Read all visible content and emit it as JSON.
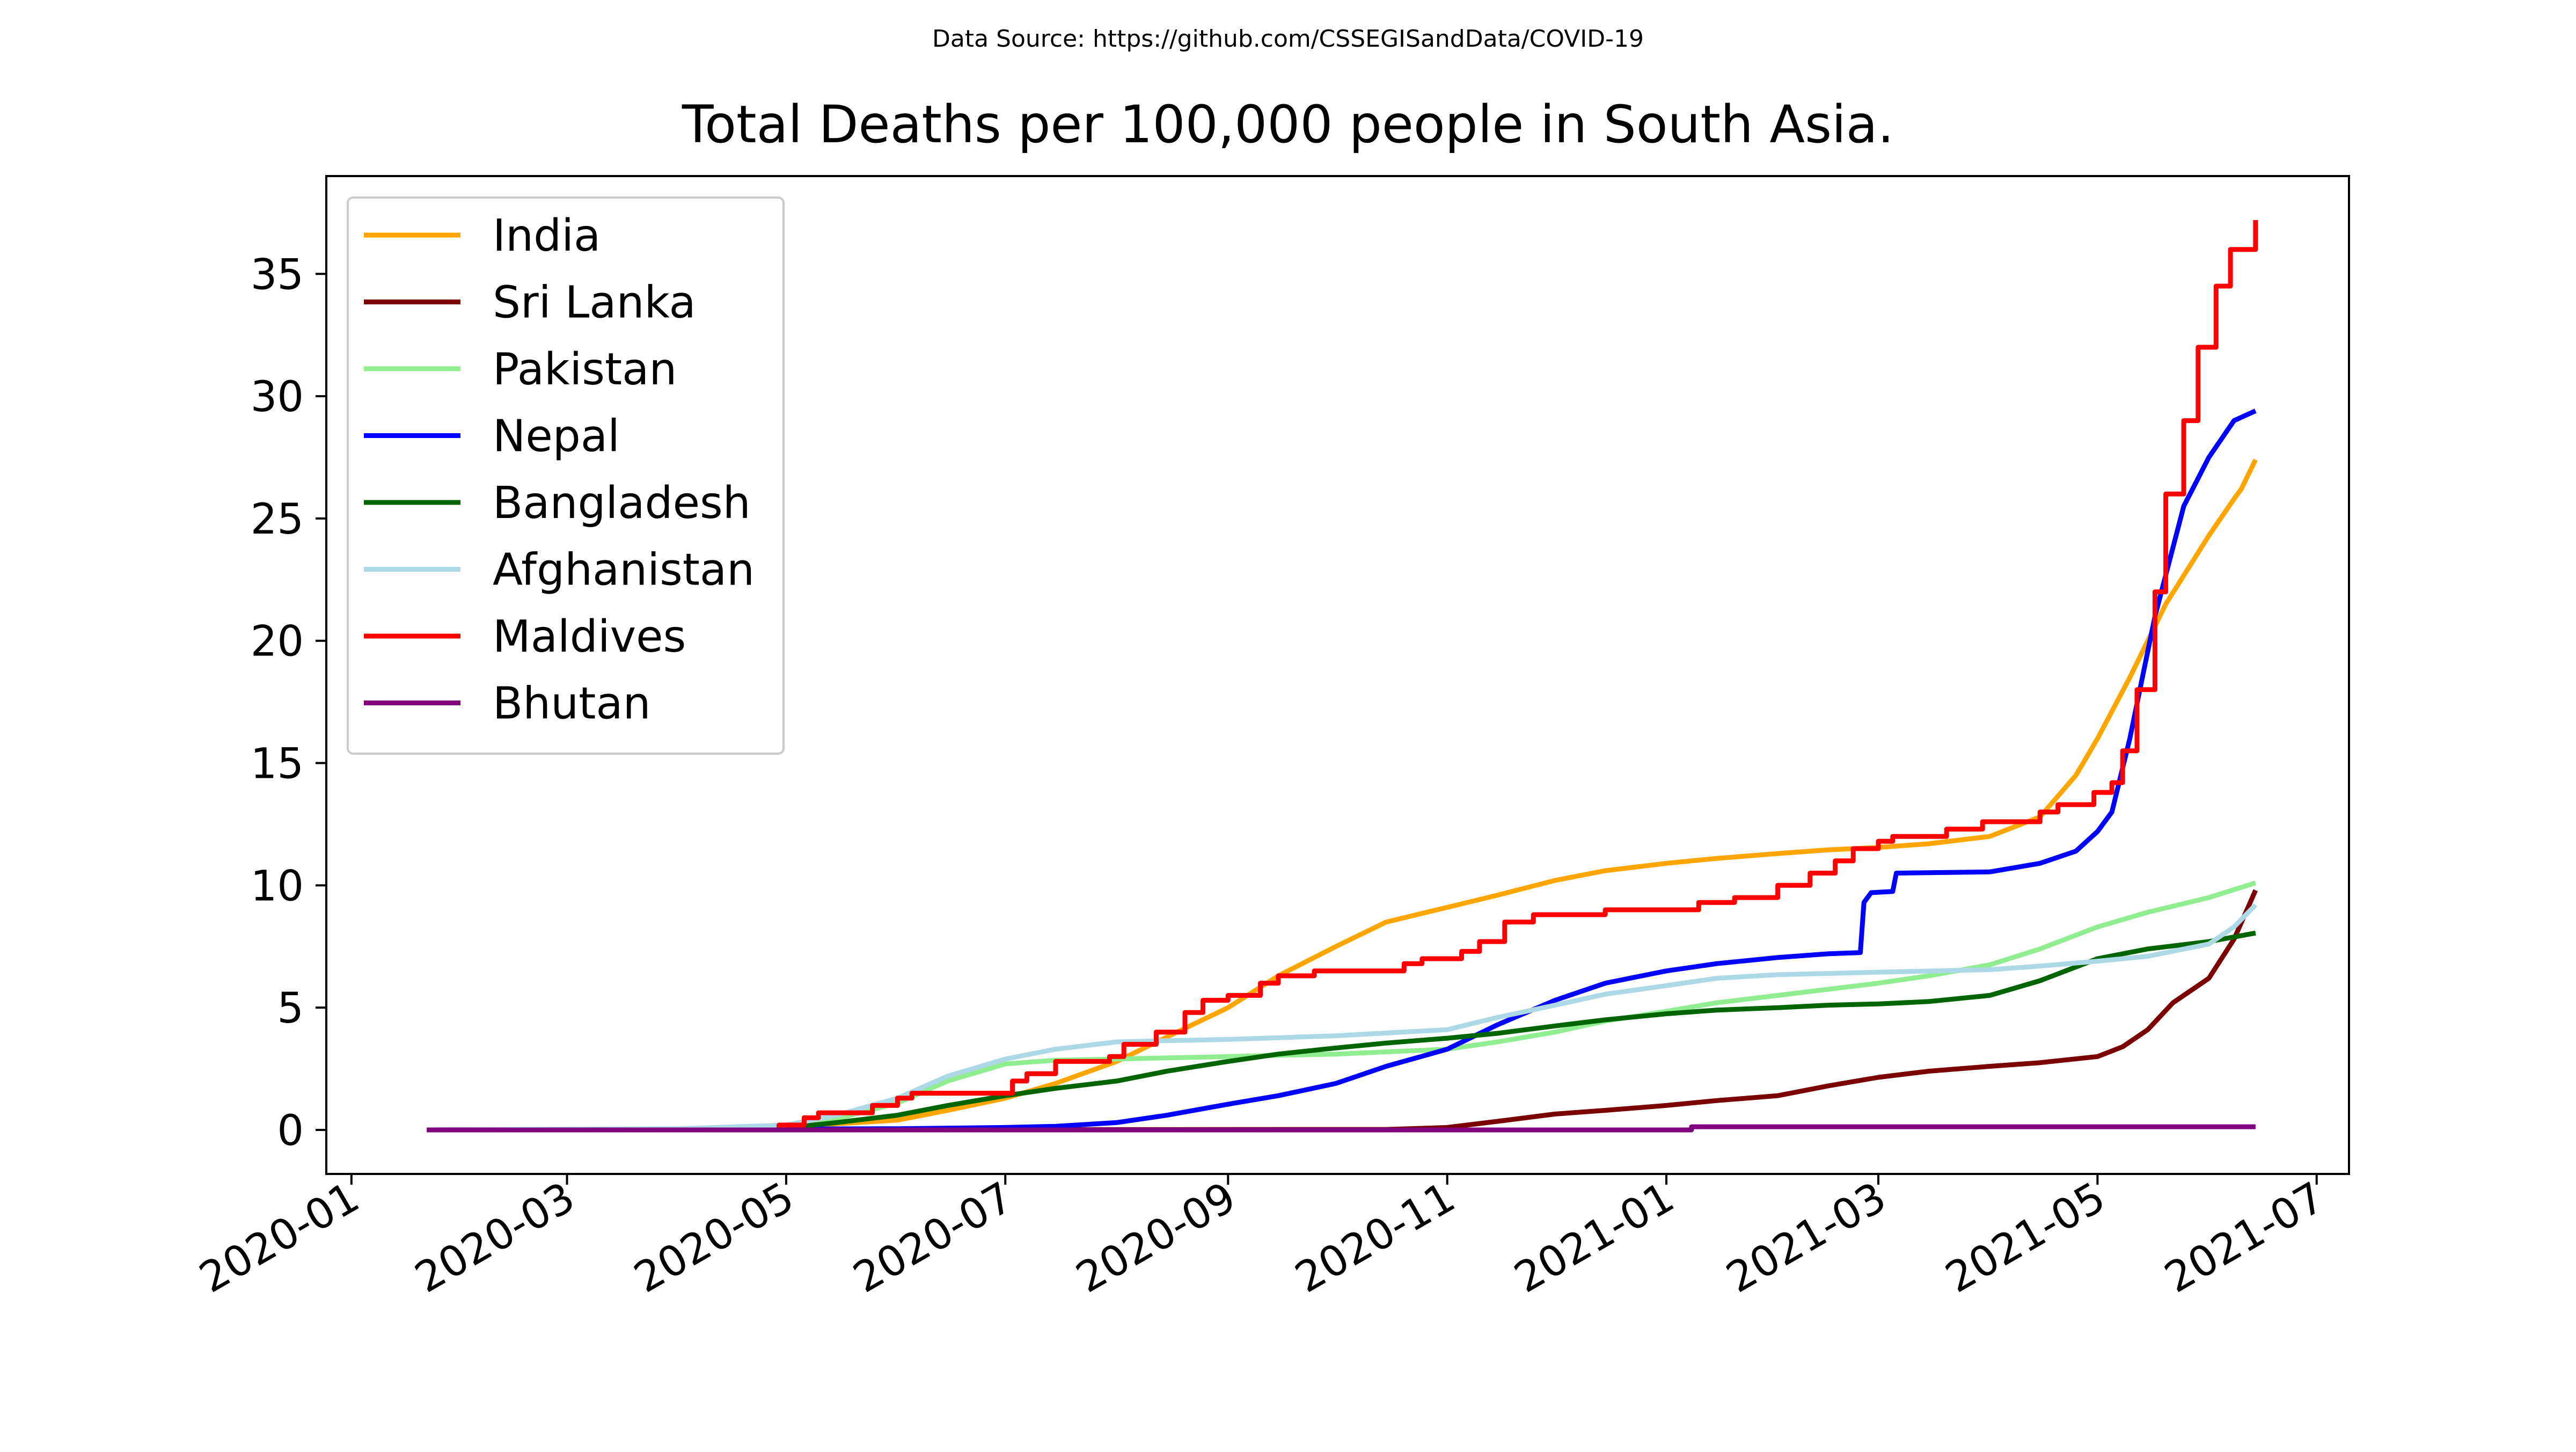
{
  "chart_data": {
    "type": "line",
    "source_note": "Data Source: https://github.com/CSSEGISandData/COVID-19",
    "title": "Total Deaths per 100,000 people in South Asia.",
    "xlabel": "",
    "ylabel": "",
    "x_axis": {
      "type": "date",
      "range": [
        "2019-12-25",
        "2021-07-10"
      ],
      "ticks": [
        "2020-01",
        "2020-03",
        "2020-05",
        "2020-07",
        "2020-09",
        "2020-11",
        "2021-01",
        "2021-03",
        "2021-05",
        "2021-07"
      ]
    },
    "y_axis": {
      "range": [
        -1.8,
        39.0
      ],
      "ticks": [
        0,
        5,
        10,
        15,
        20,
        25,
        30,
        35
      ]
    },
    "grid": false,
    "legend_position": "top-left",
    "series": [
      {
        "name": "India",
        "color": "#FFA500",
        "step": false,
        "points": [
          [
            "2020-01-22",
            0
          ],
          [
            "2020-03-15",
            0
          ],
          [
            "2020-04-15",
            0.05
          ],
          [
            "2020-05-01",
            0.12
          ],
          [
            "2020-05-15",
            0.25
          ],
          [
            "2020-06-01",
            0.4
          ],
          [
            "2020-06-15",
            0.8
          ],
          [
            "2020-07-01",
            1.3
          ],
          [
            "2020-07-15",
            1.9
          ],
          [
            "2020-08-01",
            2.8
          ],
          [
            "2020-08-15",
            3.8
          ],
          [
            "2020-09-01",
            5.0
          ],
          [
            "2020-09-15",
            6.3
          ],
          [
            "2020-10-01",
            7.5
          ],
          [
            "2020-10-15",
            8.5
          ],
          [
            "2020-11-01",
            9.1
          ],
          [
            "2020-11-15",
            9.6
          ],
          [
            "2020-12-01",
            10.2
          ],
          [
            "2020-12-15",
            10.6
          ],
          [
            "2021-01-01",
            10.9
          ],
          [
            "2021-01-15",
            11.1
          ],
          [
            "2021-02-01",
            11.3
          ],
          [
            "2021-02-15",
            11.45
          ],
          [
            "2021-03-01",
            11.55
          ],
          [
            "2021-03-15",
            11.7
          ],
          [
            "2021-04-01",
            12.0
          ],
          [
            "2021-04-15",
            12.8
          ],
          [
            "2021-04-25",
            14.5
          ],
          [
            "2021-05-01",
            16.0
          ],
          [
            "2021-05-10",
            18.5
          ],
          [
            "2021-05-20",
            21.5
          ],
          [
            "2021-06-01",
            24.3
          ],
          [
            "2021-06-08",
            25.8
          ],
          [
            "2021-06-10",
            26.2
          ],
          [
            "2021-06-14",
            27.4
          ]
        ]
      },
      {
        "name": "Sri Lanka",
        "color": "#7B0000",
        "step": false,
        "points": [
          [
            "2020-01-22",
            0
          ],
          [
            "2020-10-15",
            0.02
          ],
          [
            "2020-11-01",
            0.1
          ],
          [
            "2020-11-15",
            0.35
          ],
          [
            "2020-12-01",
            0.65
          ],
          [
            "2020-12-15",
            0.8
          ],
          [
            "2021-01-01",
            1.0
          ],
          [
            "2021-01-15",
            1.2
          ],
          [
            "2021-02-01",
            1.4
          ],
          [
            "2021-02-15",
            1.8
          ],
          [
            "2021-03-01",
            2.15
          ],
          [
            "2021-03-15",
            2.4
          ],
          [
            "2021-04-01",
            2.6
          ],
          [
            "2021-04-15",
            2.75
          ],
          [
            "2021-05-01",
            3.0
          ],
          [
            "2021-05-08",
            3.4
          ],
          [
            "2021-05-15",
            4.1
          ],
          [
            "2021-05-22",
            5.2
          ],
          [
            "2021-06-01",
            6.2
          ],
          [
            "2021-06-08",
            7.8
          ],
          [
            "2021-06-14",
            9.8
          ]
        ]
      },
      {
        "name": "Pakistan",
        "color": "#90EE90",
        "step": false,
        "points": [
          [
            "2020-01-22",
            0
          ],
          [
            "2020-04-15",
            0.05
          ],
          [
            "2020-05-01",
            0.15
          ],
          [
            "2020-05-15",
            0.45
          ],
          [
            "2020-06-01",
            1.1
          ],
          [
            "2020-06-15",
            2.0
          ],
          [
            "2020-07-01",
            2.7
          ],
          [
            "2020-07-15",
            2.85
          ],
          [
            "2020-08-01",
            2.9
          ],
          [
            "2020-09-01",
            3.0
          ],
          [
            "2020-10-01",
            3.1
          ],
          [
            "2020-11-01",
            3.3
          ],
          [
            "2020-11-15",
            3.6
          ],
          [
            "2020-12-01",
            4.0
          ],
          [
            "2020-12-15",
            4.45
          ],
          [
            "2021-01-01",
            4.85
          ],
          [
            "2021-01-15",
            5.2
          ],
          [
            "2021-02-01",
            5.5
          ],
          [
            "2021-02-15",
            5.75
          ],
          [
            "2021-03-01",
            6.0
          ],
          [
            "2021-03-15",
            6.3
          ],
          [
            "2021-04-01",
            6.75
          ],
          [
            "2021-04-15",
            7.4
          ],
          [
            "2021-05-01",
            8.3
          ],
          [
            "2021-05-15",
            8.9
          ],
          [
            "2021-06-01",
            9.5
          ],
          [
            "2021-06-14",
            10.1
          ]
        ]
      },
      {
        "name": "Nepal",
        "color": "#0000FF",
        "step": false,
        "points": [
          [
            "2020-01-22",
            0
          ],
          [
            "2020-06-01",
            0.05
          ],
          [
            "2020-07-01",
            0.1
          ],
          [
            "2020-07-15",
            0.15
          ],
          [
            "2020-08-01",
            0.3
          ],
          [
            "2020-08-15",
            0.6
          ],
          [
            "2020-09-01",
            1.05
          ],
          [
            "2020-09-15",
            1.4
          ],
          [
            "2020-10-01",
            1.9
          ],
          [
            "2020-10-15",
            2.6
          ],
          [
            "2020-11-01",
            3.3
          ],
          [
            "2020-11-15",
            4.3
          ],
          [
            "2020-12-01",
            5.3
          ],
          [
            "2020-12-15",
            6.0
          ],
          [
            "2021-01-01",
            6.5
          ],
          [
            "2021-01-15",
            6.8
          ],
          [
            "2021-02-01",
            7.05
          ],
          [
            "2021-02-15",
            7.2
          ],
          [
            "2021-02-24",
            7.25
          ],
          [
            "2021-02-25",
            9.3
          ],
          [
            "2021-02-27",
            9.7
          ],
          [
            "2021-03-05",
            9.75
          ],
          [
            "2021-03-06",
            10.5
          ],
          [
            "2021-04-01",
            10.55
          ],
          [
            "2021-04-15",
            10.9
          ],
          [
            "2021-04-25",
            11.4
          ],
          [
            "2021-05-01",
            12.2
          ],
          [
            "2021-05-05",
            13.0
          ],
          [
            "2021-05-10",
            16.0
          ],
          [
            "2021-05-17",
            21.0
          ],
          [
            "2021-05-25",
            25.5
          ],
          [
            "2021-06-01",
            27.5
          ],
          [
            "2021-06-08",
            29.0
          ],
          [
            "2021-06-14",
            29.4
          ]
        ]
      },
      {
        "name": "Bangladesh",
        "color": "#006400",
        "step": false,
        "points": [
          [
            "2020-01-22",
            0
          ],
          [
            "2020-04-15",
            0.02
          ],
          [
            "2020-05-01",
            0.08
          ],
          [
            "2020-05-15",
            0.3
          ],
          [
            "2020-06-01",
            0.6
          ],
          [
            "2020-06-15",
            1.0
          ],
          [
            "2020-07-01",
            1.4
          ],
          [
            "2020-07-15",
            1.7
          ],
          [
            "2020-08-01",
            2.0
          ],
          [
            "2020-08-15",
            2.4
          ],
          [
            "2020-09-01",
            2.8
          ],
          [
            "2020-09-15",
            3.1
          ],
          [
            "2020-10-01",
            3.35
          ],
          [
            "2020-10-15",
            3.55
          ],
          [
            "2020-11-01",
            3.75
          ],
          [
            "2020-11-15",
            3.95
          ],
          [
            "2020-12-01",
            4.25
          ],
          [
            "2020-12-15",
            4.5
          ],
          [
            "2021-01-01",
            4.75
          ],
          [
            "2021-01-15",
            4.9
          ],
          [
            "2021-02-01",
            5.0
          ],
          [
            "2021-02-15",
            5.1
          ],
          [
            "2021-03-01",
            5.15
          ],
          [
            "2021-03-15",
            5.25
          ],
          [
            "2021-04-01",
            5.5
          ],
          [
            "2021-04-15",
            6.1
          ],
          [
            "2021-05-01",
            7.0
          ],
          [
            "2021-05-15",
            7.4
          ],
          [
            "2021-06-01",
            7.7
          ],
          [
            "2021-06-14",
            8.05
          ]
        ]
      },
      {
        "name": "Afghanistan",
        "color": "#ADD8E6",
        "step": false,
        "points": [
          [
            "2020-01-22",
            0
          ],
          [
            "2020-04-01",
            0.05
          ],
          [
            "2020-05-01",
            0.2
          ],
          [
            "2020-05-15",
            0.6
          ],
          [
            "2020-06-01",
            1.3
          ],
          [
            "2020-06-15",
            2.2
          ],
          [
            "2020-07-01",
            2.9
          ],
          [
            "2020-07-15",
            3.3
          ],
          [
            "2020-08-01",
            3.6
          ],
          [
            "2020-08-15",
            3.65
          ],
          [
            "2020-09-01",
            3.7
          ],
          [
            "2020-10-01",
            3.85
          ],
          [
            "2020-11-01",
            4.1
          ],
          [
            "2020-11-15",
            4.6
          ],
          [
            "2020-12-01",
            5.1
          ],
          [
            "2020-12-15",
            5.55
          ],
          [
            "2021-01-01",
            5.9
          ],
          [
            "2021-01-15",
            6.2
          ],
          [
            "2021-02-01",
            6.35
          ],
          [
            "2021-03-01",
            6.45
          ],
          [
            "2021-04-01",
            6.55
          ],
          [
            "2021-04-15",
            6.7
          ],
          [
            "2021-05-01",
            6.9
          ],
          [
            "2021-05-15",
            7.1
          ],
          [
            "2021-06-01",
            7.6
          ],
          [
            "2021-06-08",
            8.3
          ],
          [
            "2021-06-14",
            9.2
          ]
        ]
      },
      {
        "name": "Maldives",
        "color": "#FF0000",
        "step": true,
        "points": [
          [
            "2020-01-22",
            0
          ],
          [
            "2020-04-28",
            0
          ],
          [
            "2020-04-29",
            0.2
          ],
          [
            "2020-05-06",
            0.5
          ],
          [
            "2020-05-10",
            0.7
          ],
          [
            "2020-05-25",
            1.0
          ],
          [
            "2020-06-01",
            1.3
          ],
          [
            "2020-06-05",
            1.5
          ],
          [
            "2020-06-30",
            1.5
          ],
          [
            "2020-07-03",
            2.0
          ],
          [
            "2020-07-07",
            2.3
          ],
          [
            "2020-07-15",
            2.8
          ],
          [
            "2020-07-30",
            3.0
          ],
          [
            "2020-08-03",
            3.5
          ],
          [
            "2020-08-12",
            4.0
          ],
          [
            "2020-08-20",
            4.8
          ],
          [
            "2020-08-25",
            5.3
          ],
          [
            "2020-09-01",
            5.5
          ],
          [
            "2020-09-10",
            6.0
          ],
          [
            "2020-09-15",
            6.3
          ],
          [
            "2020-09-25",
            6.5
          ],
          [
            "2020-10-20",
            6.8
          ],
          [
            "2020-10-25",
            7.0
          ],
          [
            "2020-11-05",
            7.3
          ],
          [
            "2020-11-10",
            7.7
          ],
          [
            "2020-11-17",
            8.5
          ],
          [
            "2020-11-25",
            8.8
          ],
          [
            "2020-12-15",
            9.0
          ],
          [
            "2021-01-10",
            9.3
          ],
          [
            "2021-01-20",
            9.5
          ],
          [
            "2021-02-01",
            10.0
          ],
          [
            "2021-02-10",
            10.5
          ],
          [
            "2021-02-17",
            11.0
          ],
          [
            "2021-02-22",
            11.5
          ],
          [
            "2021-03-01",
            11.8
          ],
          [
            "2021-03-05",
            12.0
          ],
          [
            "2021-03-20",
            12.3
          ],
          [
            "2021-03-30",
            12.6
          ],
          [
            "2021-04-15",
            13.0
          ],
          [
            "2021-04-20",
            13.3
          ],
          [
            "2021-04-30",
            13.8
          ],
          [
            "2021-05-05",
            14.2
          ],
          [
            "2021-05-08",
            15.5
          ],
          [
            "2021-05-12",
            18.0
          ],
          [
            "2021-05-17",
            22.0
          ],
          [
            "2021-05-20",
            26.0
          ],
          [
            "2021-05-25",
            29.0
          ],
          [
            "2021-05-29",
            32.0
          ],
          [
            "2021-06-03",
            34.5
          ],
          [
            "2021-06-07",
            36.0
          ],
          [
            "2021-06-14",
            37.2
          ]
        ]
      },
      {
        "name": "Bhutan",
        "color": "#800080",
        "step": true,
        "points": [
          [
            "2020-01-22",
            0
          ],
          [
            "2021-01-07",
            0
          ],
          [
            "2021-01-08",
            0.13
          ],
          [
            "2021-06-14",
            0.13
          ]
        ]
      }
    ]
  }
}
